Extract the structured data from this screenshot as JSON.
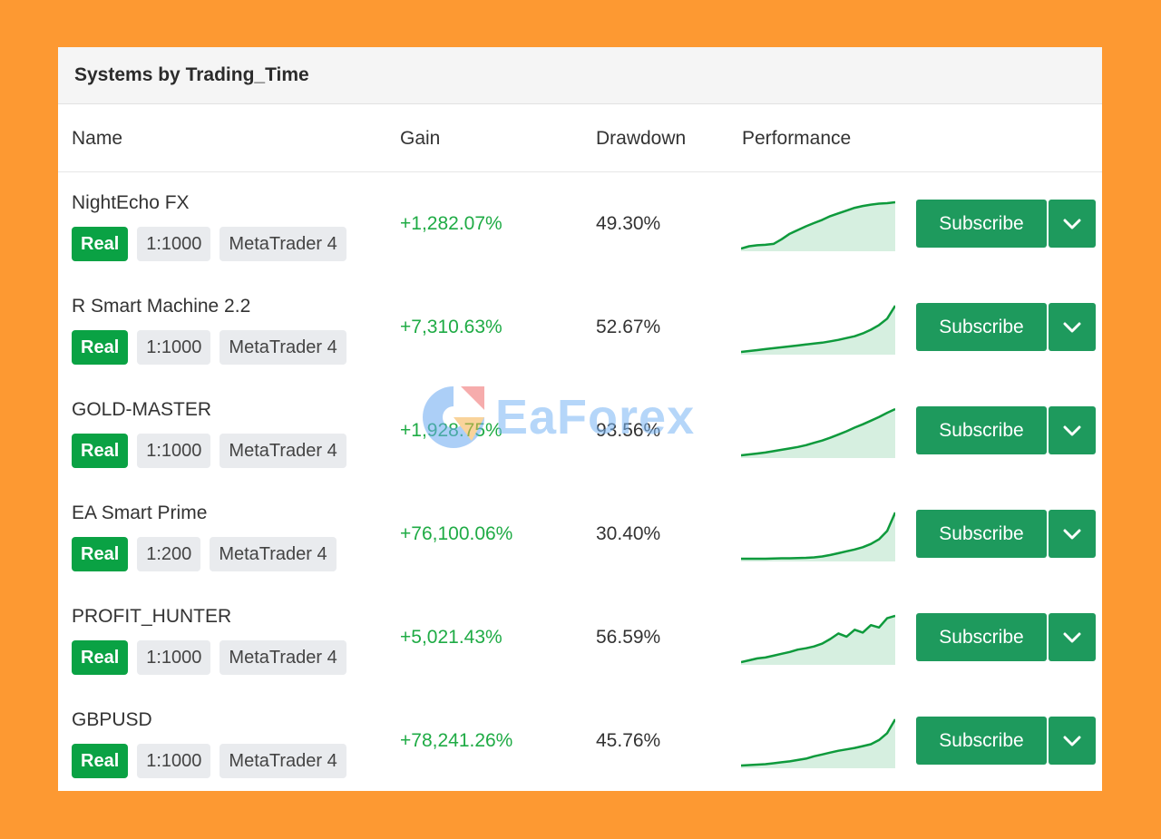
{
  "panel": {
    "title": "Systems by Trading_Time"
  },
  "columns": {
    "name": "Name",
    "gain": "Gain",
    "drawdown": "Drawdown",
    "performance": "Performance"
  },
  "systems": [
    {
      "name": "NightEcho FX",
      "type": "Real",
      "leverage": "1:1000",
      "platform": "MetaTrader 4",
      "gain": "+1,282.07%",
      "drawdown": "49.30%",
      "subscribe": "Subscribe",
      "perf": [
        0,
        0.05,
        0.07,
        0.08,
        0.1,
        0.2,
        0.32,
        0.4,
        0.48,
        0.55,
        0.62,
        0.7,
        0.76,
        0.82,
        0.88,
        0.92,
        0.95,
        0.97,
        0.98,
        1.0
      ]
    },
    {
      "name": "R Smart Machine 2.2",
      "type": "Real",
      "leverage": "1:1000",
      "platform": "MetaTrader 4",
      "gain": "+7,310.63%",
      "drawdown": "52.67%",
      "subscribe": "Subscribe",
      "perf": [
        0,
        0.02,
        0.04,
        0.06,
        0.08,
        0.1,
        0.12,
        0.14,
        0.16,
        0.18,
        0.2,
        0.23,
        0.26,
        0.3,
        0.34,
        0.4,
        0.48,
        0.58,
        0.72,
        1.0
      ]
    },
    {
      "name": "GOLD-MASTER",
      "type": "Real",
      "leverage": "1:1000",
      "platform": "MetaTrader 4",
      "gain": "+1,928.75%",
      "drawdown": "93.56%",
      "subscribe": "Subscribe",
      "perf": [
        0,
        0.02,
        0.04,
        0.06,
        0.09,
        0.12,
        0.15,
        0.18,
        0.22,
        0.27,
        0.32,
        0.38,
        0.45,
        0.52,
        0.6,
        0.67,
        0.75,
        0.83,
        0.92,
        1.0
      ]
    },
    {
      "name": "EA Smart Prime",
      "type": "Real",
      "leverage": "1:200",
      "platform": "MetaTrader 4",
      "gain": "+76,100.06%",
      "drawdown": "30.40%",
      "subscribe": "Subscribe",
      "perf": [
        0,
        0,
        0,
        0,
        0.005,
        0.01,
        0.01,
        0.015,
        0.02,
        0.03,
        0.05,
        0.08,
        0.12,
        0.16,
        0.2,
        0.25,
        0.32,
        0.42,
        0.6,
        1.0
      ]
    },
    {
      "name": "PROFIT_HUNTER",
      "type": "Real",
      "leverage": "1:1000",
      "platform": "MetaTrader 4",
      "gain": "+5,021.43%",
      "drawdown": "56.59%",
      "subscribe": "Subscribe",
      "perf": [
        0,
        0.04,
        0.08,
        0.1,
        0.14,
        0.18,
        0.22,
        0.27,
        0.3,
        0.34,
        0.4,
        0.5,
        0.62,
        0.55,
        0.7,
        0.64,
        0.8,
        0.75,
        0.95,
        1.0
      ]
    },
    {
      "name": "GBPUSD",
      "type": "Real",
      "leverage": "1:1000",
      "platform": "MetaTrader 4",
      "gain": "+78,241.26%",
      "drawdown": "45.76%",
      "subscribe": "Subscribe",
      "perf": [
        0,
        0.01,
        0.02,
        0.03,
        0.05,
        0.07,
        0.09,
        0.12,
        0.15,
        0.2,
        0.24,
        0.28,
        0.32,
        0.35,
        0.38,
        0.42,
        0.46,
        0.55,
        0.7,
        1.0
      ]
    }
  ],
  "watermark": {
    "text": "EaForex"
  },
  "colors": {
    "background": "#fd9932",
    "accent": "#1e9a5d",
    "gain": "#1fab45",
    "real_badge": "#0aa244",
    "spark_line": "#0e9a3c",
    "spark_fill": "#d6efe0"
  },
  "icons": {
    "dropdown": "chevron-down-icon",
    "logo": "eaforex-logo-icon"
  }
}
